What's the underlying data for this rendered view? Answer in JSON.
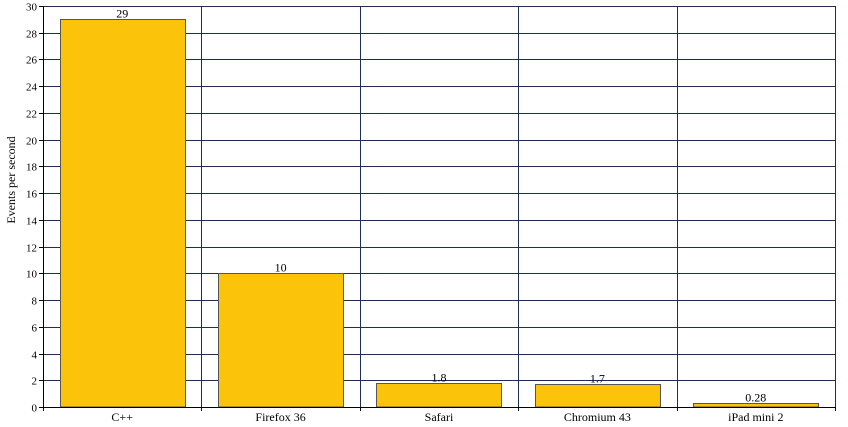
{
  "chart_data": {
    "type": "bar",
    "categories": [
      "C++",
      "Firefox 36",
      "Safari",
      "Chromium 43",
      "iPad mini 2"
    ],
    "values": [
      29,
      10,
      1.8,
      1.7,
      0.28
    ],
    "value_labels": [
      "29",
      "10",
      "1.8",
      "1.7",
      "0.28"
    ],
    "ylabel": "Events per second",
    "ylim": [
      0,
      30
    ],
    "yticks": [
      0,
      2,
      4,
      6,
      8,
      10,
      12,
      14,
      16,
      18,
      20,
      22,
      24,
      26,
      28,
      30
    ],
    "grid": true,
    "legend": "none",
    "colors": {
      "bar_fill": "#FCC30B",
      "bar_stroke": "#555555",
      "grid": "#1F2F4F",
      "axis": "#000000"
    }
  }
}
